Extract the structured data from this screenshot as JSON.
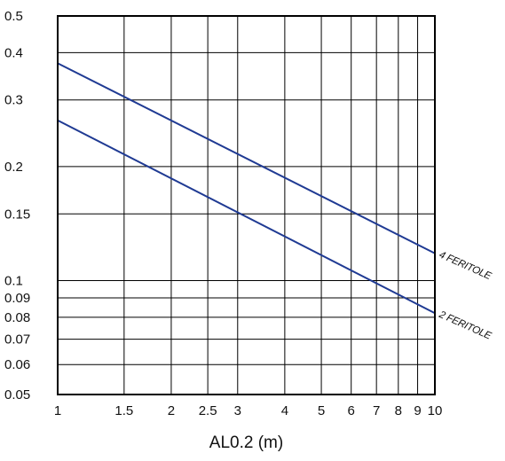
{
  "chart_data": {
    "type": "line",
    "title": "",
    "xlabel": "AL0.2 (m)",
    "ylabel": "",
    "x_scale": "log",
    "y_scale": "log",
    "xlim": [
      1,
      10
    ],
    "ylim": [
      0.05,
      0.5
    ],
    "grid": true,
    "x_ticks": [
      1,
      1.5,
      2,
      2.5,
      3,
      4,
      5,
      6,
      7,
      8,
      9,
      10
    ],
    "x_tick_labels": [
      "1",
      "1.5",
      "2",
      "2.5",
      "3",
      "4",
      "5",
      "6",
      "7",
      "8",
      "9",
      "10"
    ],
    "y_ticks": [
      0.05,
      0.06,
      0.07,
      0.08,
      0.09,
      0.1,
      0.15,
      0.2,
      0.3,
      0.4,
      0.5
    ],
    "y_tick_labels": [
      "0.05",
      "0.06",
      "0.07",
      "0.08",
      "0.09",
      "0.1",
      "0.15",
      "0.2",
      "0.3",
      "0.4",
      "0.5"
    ],
    "series": [
      {
        "name": "4 FERITOLE",
        "color": "#1f3a93",
        "x": [
          1,
          10
        ],
        "y": [
          0.375,
          0.118
        ]
      },
      {
        "name": "2 FERITOLE",
        "color": "#1f3a93",
        "x": [
          1,
          10
        ],
        "y": [
          0.265,
          0.082
        ]
      }
    ]
  }
}
